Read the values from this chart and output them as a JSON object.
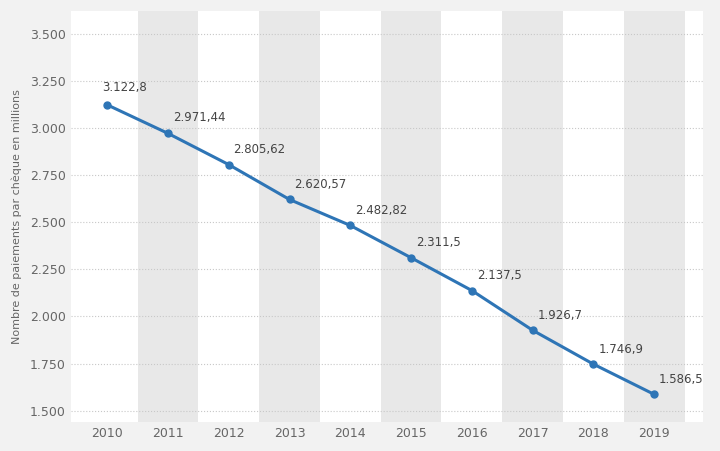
{
  "years": [
    2010,
    2011,
    2012,
    2013,
    2014,
    2015,
    2016,
    2017,
    2018,
    2019
  ],
  "values": [
    3122.8,
    2971.44,
    2805.62,
    2620.57,
    2482.82,
    2311.5,
    2137.5,
    1926.7,
    1746.9,
    1586.5
  ],
  "labels": [
    "3.122,8",
    "2.971,44",
    "2.805,62",
    "2.620,57",
    "2.482,82",
    "2.311,5",
    "2.137,5",
    "1.926,7",
    "1.746,9",
    "1.586,5"
  ],
  "line_color": "#2e75b6",
  "marker_color": "#2e75b6",
  "figure_background": "#f2f2f2",
  "plot_background": "#ffffff",
  "column_band_color": "#e8e8e8",
  "ylabel": "Nombre de paiements par chèque en millions",
  "ytick_labels": [
    "1.500",
    "1.750",
    "2.000",
    "2.250",
    "2.500",
    "2.750",
    "3.000",
    "3.250",
    "3.500"
  ],
  "ytick_values": [
    1500,
    1750,
    2000,
    2250,
    2500,
    2750,
    3000,
    3250,
    3500
  ],
  "ylim": [
    1440,
    3620
  ],
  "xlim": [
    2009.4,
    2019.8
  ],
  "grid_color": "#c8c8c8",
  "label_fontsize": 8.5,
  "tick_fontsize": 9,
  "ylabel_fontsize": 8,
  "line_width": 2.2,
  "marker_size": 5
}
